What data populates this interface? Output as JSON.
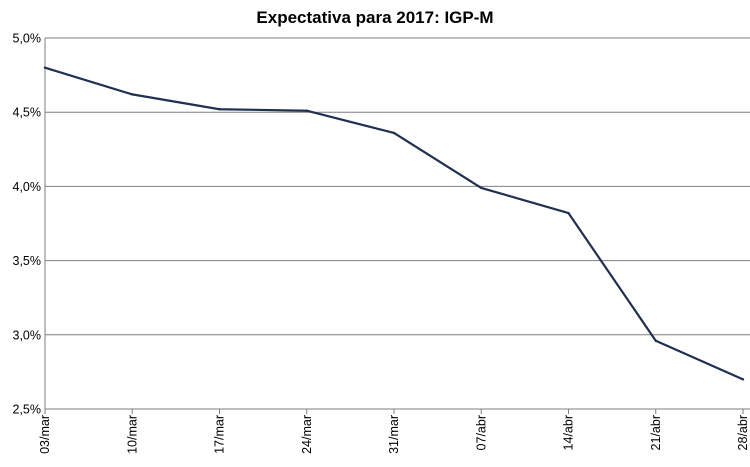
{
  "chart_data": {
    "type": "line",
    "title": "Expectativa para 2017: IGP-M",
    "xlabel": "",
    "ylabel": "",
    "categories": [
      "03/mar",
      "10/mar",
      "17/mar",
      "24/mar",
      "31/mar",
      "07/abr",
      "14/abr",
      "21/abr",
      "28/abr"
    ],
    "series": [
      {
        "values": [
          4.8,
          4.62,
          4.52,
          4.51,
          4.36,
          3.99,
          3.82,
          2.96,
          2.7
        ]
      }
    ],
    "ylim": [
      2.5,
      5.0
    ],
    "yticks": [
      2.5,
      3.0,
      3.5,
      4.0,
      4.5,
      5.0
    ],
    "ytick_labels": [
      "2,5%",
      "3,0%",
      "3,5%",
      "4,0%",
      "4,5%",
      "5,0%"
    ],
    "grid": "horizontal",
    "legend": "none",
    "line_color": "#1f3050"
  }
}
